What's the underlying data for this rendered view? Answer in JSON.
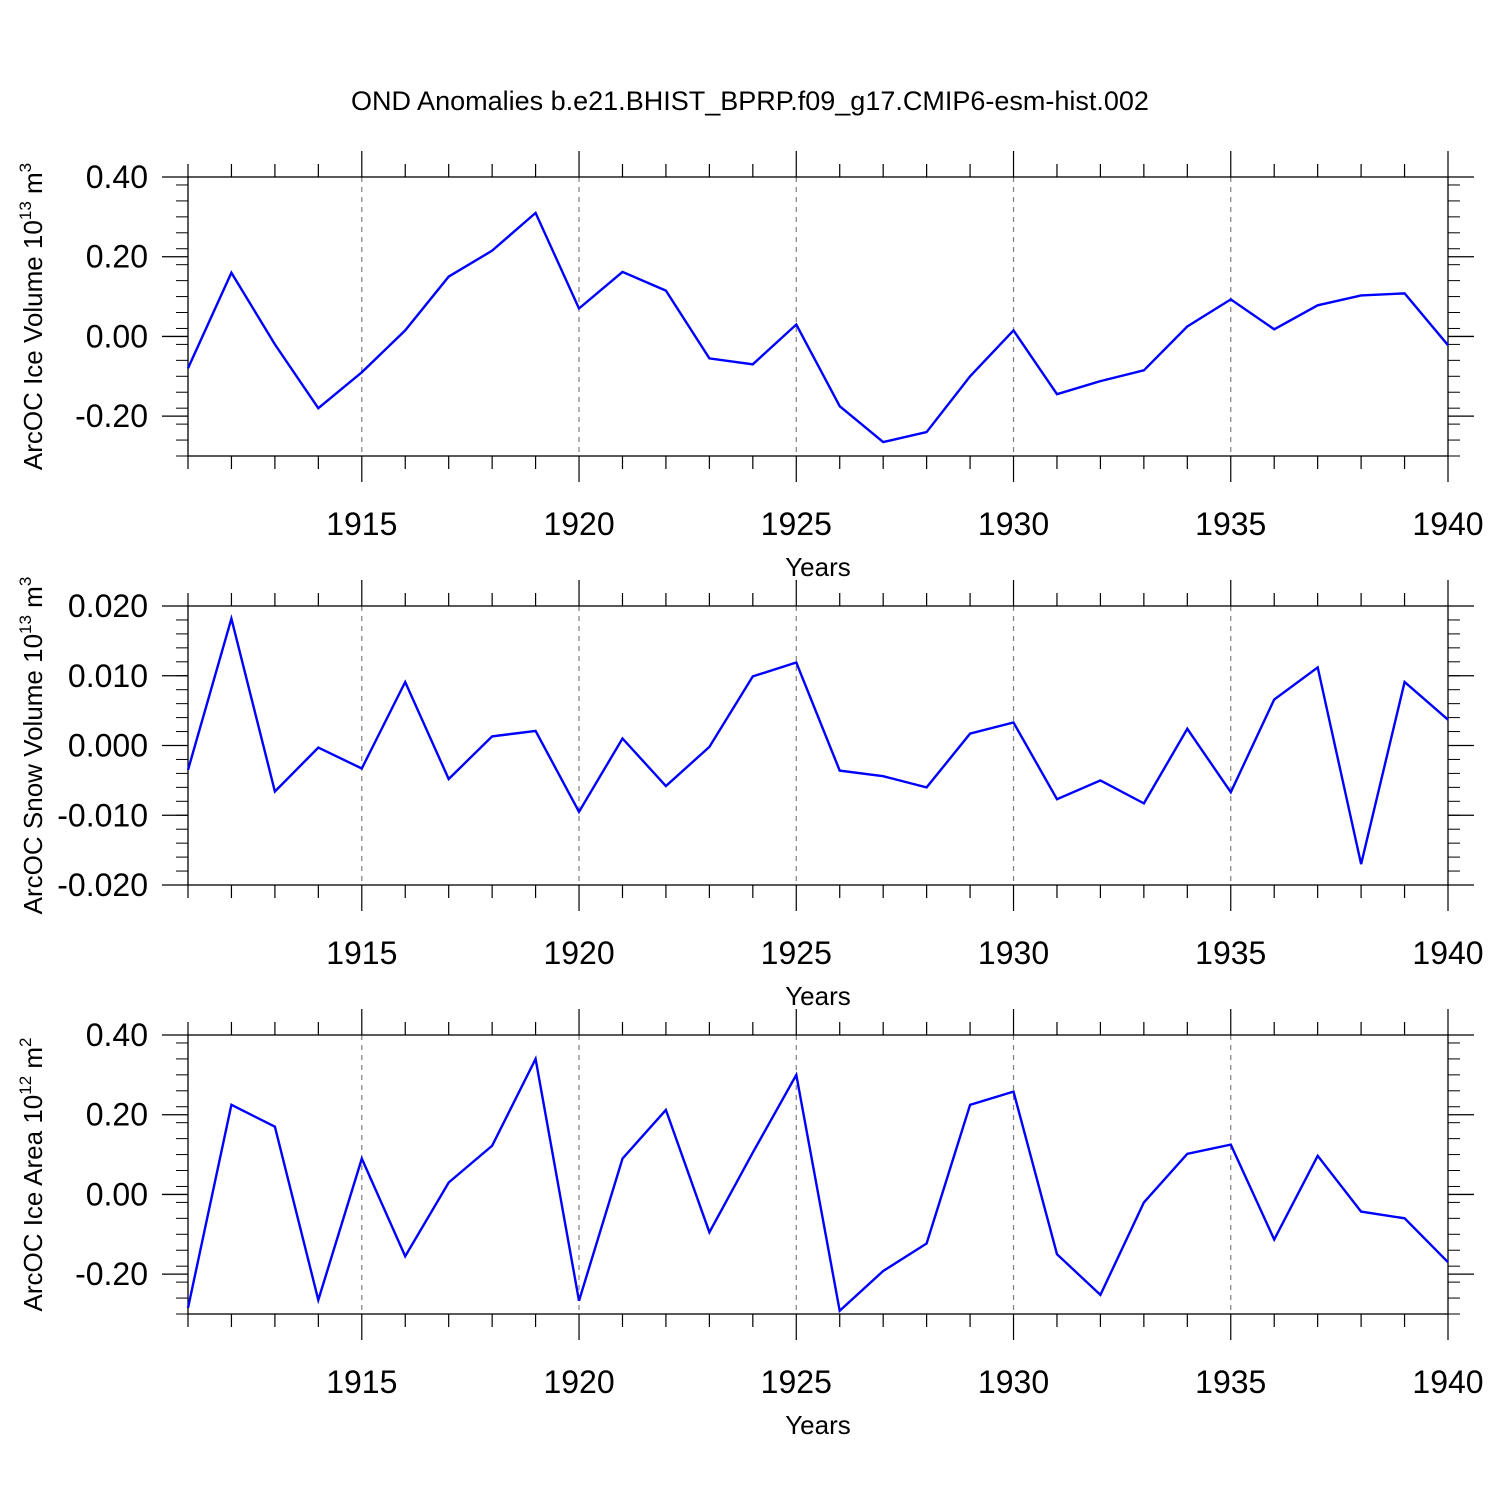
{
  "title": "OND Anomalies b.e21.BHIST_BPRP.f09_g17.CMIP6-esm-hist.002",
  "colors": {
    "series": "#0000ff",
    "axis": "#000000",
    "grid": "#7f7f7f"
  },
  "chart_data": [
    {
      "type": "line",
      "ylabel_main": "ArcOC Ice Volume 10",
      "ylabel_exp": "13",
      "ylabel_unit": " m",
      "ylabel_unit_exp": "3",
      "xlabel": "Years",
      "xlim": [
        1911,
        1940
      ],
      "ylim": [
        -0.3,
        0.4
      ],
      "yticks": [
        -0.2,
        0.0,
        0.2,
        0.4
      ],
      "ytick_labels": [
        "-0.20",
        "0.00",
        "0.20",
        "0.40"
      ],
      "xticks": [
        1915,
        1920,
        1925,
        1930,
        1935,
        1940
      ],
      "xtick_labels": [
        "1915",
        "1920",
        "1925",
        "1930",
        "1935",
        "1940"
      ],
      "grid": "vertical dashed at major x ticks",
      "x": [
        1911,
        1912,
        1913,
        1914,
        1915,
        1916,
        1917,
        1918,
        1919,
        1920,
        1921,
        1922,
        1923,
        1924,
        1925,
        1926,
        1927,
        1928,
        1929,
        1930,
        1931,
        1932,
        1933,
        1934,
        1935,
        1936,
        1937,
        1938,
        1939,
        1940
      ],
      "y": [
        -0.08,
        0.16,
        -0.02,
        -0.18,
        -0.09,
        0.015,
        0.15,
        0.215,
        0.31,
        0.07,
        0.162,
        0.115,
        -0.055,
        -0.07,
        0.03,
        -0.175,
        -0.265,
        -0.24,
        -0.1,
        0.015,
        -0.145,
        -0.112,
        -0.085,
        0.025,
        0.093,
        0.018,
        0.078,
        0.103,
        0.108,
        -0.022
      ]
    },
    {
      "type": "line",
      "ylabel_main": "ArcOC Snow Volume 10",
      "ylabel_exp": "13",
      "ylabel_unit": " m",
      "ylabel_unit_exp": "3",
      "xlabel": "Years",
      "xlim": [
        1911,
        1940
      ],
      "ylim": [
        -0.02,
        0.02
      ],
      "yticks": [
        -0.02,
        -0.01,
        0.0,
        0.01,
        0.02
      ],
      "ytick_labels": [
        "-0.020",
        "-0.010",
        "0.000",
        "0.010",
        "0.020"
      ],
      "xticks": [
        1915,
        1920,
        1925,
        1930,
        1935,
        1940
      ],
      "xtick_labels": [
        "1915",
        "1920",
        "1925",
        "1930",
        "1935",
        "1940"
      ],
      "grid": "vertical dashed at major x ticks",
      "x": [
        1911,
        1912,
        1913,
        1914,
        1915,
        1916,
        1917,
        1918,
        1919,
        1920,
        1921,
        1922,
        1923,
        1924,
        1925,
        1926,
        1927,
        1928,
        1929,
        1930,
        1931,
        1932,
        1933,
        1934,
        1935,
        1936,
        1937,
        1938,
        1939,
        1940
      ],
      "y": [
        -0.0035,
        0.0182,
        -0.0066,
        -0.0003,
        -0.0033,
        0.0091,
        -0.0048,
        0.0013,
        0.0021,
        -0.0095,
        0.001,
        -0.0058,
        -0.0002,
        0.0099,
        0.0119,
        -0.0036,
        -0.0044,
        -0.006,
        0.0017,
        0.0033,
        -0.0077,
        -0.005,
        -0.0083,
        0.0024,
        -0.0067,
        0.0066,
        0.0112,
        -0.017,
        0.0091,
        0.0037
      ]
    },
    {
      "type": "line",
      "ylabel_main": "ArcOC Ice Area 10",
      "ylabel_exp": "12",
      "ylabel_unit": " m",
      "ylabel_unit_exp": "2",
      "xlabel": "Years",
      "xlim": [
        1911,
        1940
      ],
      "ylim": [
        -0.3,
        0.4
      ],
      "yticks": [
        -0.2,
        0.0,
        0.2,
        0.4
      ],
      "ytick_labels": [
        "-0.20",
        "0.00",
        "0.20",
        "0.40"
      ],
      "xticks": [
        1915,
        1920,
        1925,
        1930,
        1935,
        1940
      ],
      "xtick_labels": [
        "1915",
        "1920",
        "1925",
        "1930",
        "1935",
        "1940"
      ],
      "grid": "vertical dashed at major x ticks",
      "x": [
        1911,
        1912,
        1913,
        1914,
        1915,
        1916,
        1917,
        1918,
        1919,
        1920,
        1921,
        1922,
        1923,
        1924,
        1925,
        1926,
        1927,
        1928,
        1929,
        1930,
        1931,
        1932,
        1933,
        1934,
        1935,
        1936,
        1937,
        1938,
        1939,
        1940
      ],
      "y": [
        -0.285,
        0.225,
        0.17,
        -0.265,
        0.09,
        -0.155,
        0.03,
        0.122,
        0.34,
        -0.267,
        0.09,
        0.212,
        -0.095,
        0.105,
        0.3,
        -0.292,
        -0.192,
        -0.123,
        0.225,
        0.258,
        -0.15,
        -0.252,
        -0.02,
        0.102,
        0.125,
        -0.113,
        0.097,
        -0.043,
        -0.06,
        -0.17
      ]
    }
  ]
}
